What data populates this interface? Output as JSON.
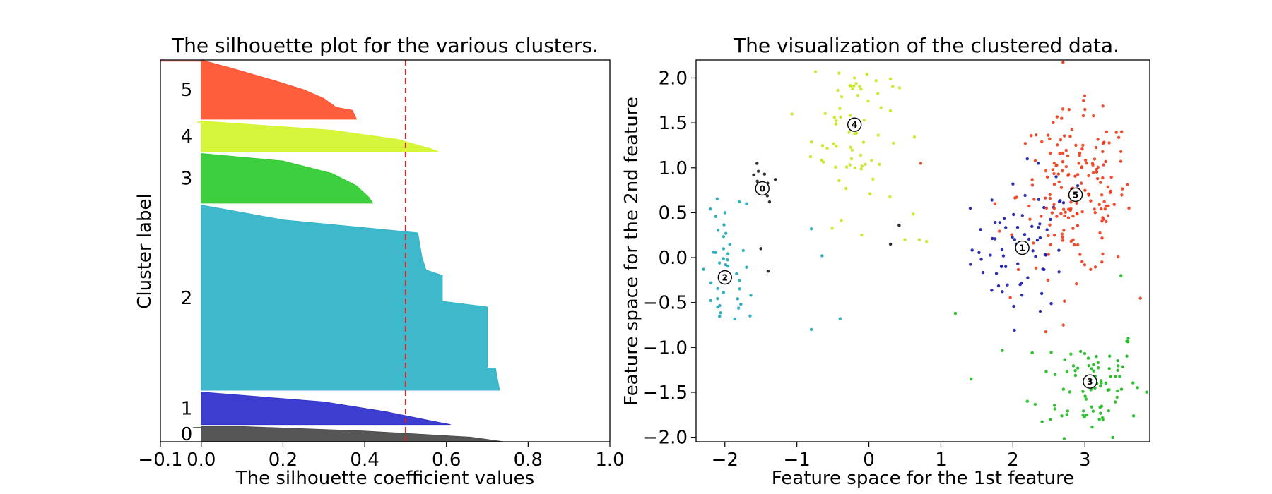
{
  "chart_data": [
    {
      "type": "silhouette",
      "title": "The silhouette plot for the various clusters.",
      "xlabel": "The silhouette coefficient values",
      "ylabel": "Cluster label",
      "xlim": [
        -0.1,
        1.0
      ],
      "xticks": [
        -0.1,
        0.0,
        0.2,
        0.4,
        0.6,
        0.8,
        1.0
      ],
      "xtick_labels": [
        "−0.1",
        "0.0",
        "0.2",
        "0.4",
        "0.6",
        "0.8",
        "1.0"
      ],
      "average_silhouette": 0.5,
      "average_line_color": "#d62728",
      "clusters": [
        {
          "label": "0",
          "color": "#4d4d4d",
          "band": [
            0.0,
            0.04
          ],
          "max": 0.74,
          "min": -0.02,
          "profile": [
            [
              0.0,
              0.74
            ],
            [
              0.3,
              0.66
            ],
            [
              0.7,
              0.4
            ],
            [
              1.0,
              0.1
            ]
          ]
        },
        {
          "label": "1",
          "color": "#3333cc",
          "band": [
            0.045,
            0.13
          ],
          "max": 0.61,
          "min": 0.0,
          "profile": [
            [
              0.0,
              0.61
            ],
            [
              0.12,
              0.56
            ],
            [
              0.4,
              0.45
            ],
            [
              0.7,
              0.3
            ],
            [
              1.0,
              0.0
            ]
          ]
        },
        {
          "label": "2",
          "color": "#33b5c8",
          "band": [
            0.135,
            0.62
          ],
          "max": 0.73,
          "min": 0.0,
          "profile": [
            [
              0.0,
              0.73
            ],
            [
              0.12,
              0.72
            ],
            [
              0.12,
              0.7
            ],
            [
              0.45,
              0.7
            ],
            [
              0.48,
              0.59
            ],
            [
              0.62,
              0.59
            ],
            [
              0.65,
              0.55
            ],
            [
              0.72,
              0.54
            ],
            [
              0.85,
              0.53
            ],
            [
              0.92,
              0.2
            ],
            [
              1.0,
              0.0
            ]
          ]
        },
        {
          "label": "3",
          "color": "#33cc33",
          "band": [
            0.625,
            0.755
          ],
          "max": 0.42,
          "min": 0.0,
          "profile": [
            [
              0.0,
              0.42
            ],
            [
              0.12,
              0.41
            ],
            [
              0.35,
              0.38
            ],
            [
              0.6,
              0.32
            ],
            [
              0.85,
              0.2
            ],
            [
              1.0,
              0.0
            ]
          ]
        },
        {
          "label": "4",
          "color": "#d4f532",
          "band": [
            0.76,
            0.84
          ],
          "max": 0.58,
          "min": -0.01,
          "profile": [
            [
              0.0,
              0.58
            ],
            [
              0.1,
              0.56
            ],
            [
              0.4,
              0.48
            ],
            [
              0.7,
              0.32
            ],
            [
              1.0,
              0.0
            ]
          ]
        },
        {
          "label": "5",
          "color": "#ff5533",
          "band": [
            0.845,
            1.0
          ],
          "max": 0.38,
          "min": -0.1,
          "profile": [
            [
              0.0,
              0.38
            ],
            [
              0.15,
              0.37
            ],
            [
              0.2,
              0.33
            ],
            [
              0.35,
              0.3
            ],
            [
              0.5,
              0.25
            ],
            [
              0.65,
              0.18
            ],
            [
              0.85,
              0.08
            ],
            [
              1.0,
              0.0
            ]
          ]
        }
      ]
    },
    {
      "type": "scatter",
      "title": "The visualization of the clustered data.",
      "xlabel": "Feature space for the 1st feature",
      "ylabel": "Feature space for the 2nd feature",
      "xlim": [
        -2.4,
        3.9
      ],
      "ylim": [
        -2.05,
        2.2
      ],
      "xticks": [
        -2,
        -1,
        0,
        1,
        2,
        3
      ],
      "xtick_labels": [
        "−2",
        "−1",
        "0",
        "1",
        "2",
        "3"
      ],
      "yticks": [
        -2.0,
        -1.5,
        -1.0,
        -0.5,
        0.0,
        0.5,
        1.0,
        1.5,
        2.0
      ],
      "ytick_labels": [
        "−2.0",
        "−1.5",
        "−1.0",
        "−0.5",
        "0.0",
        "0.5",
        "1.0",
        "1.5",
        "2.0"
      ],
      "clusters": [
        {
          "label": "0",
          "color": "#1a1a1a",
          "center": [
            -1.48,
            0.77
          ],
          "n": 14,
          "spread": [
            0.18,
            0.2
          ],
          "points": [
            [
              -1.3,
              0.87
            ],
            [
              -1.45,
              0.93
            ],
            [
              -1.55,
              0.85
            ],
            [
              -1.38,
              0.62
            ],
            [
              -1.5,
              0.1
            ],
            [
              -1.4,
              -0.15
            ],
            [
              0.3,
              0.15
            ],
            [
              0.42,
              0.36
            ],
            [
              -1.6,
              0.92
            ]
          ]
        },
        {
          "label": "1",
          "color": "#1a1aaa",
          "center": [
            2.13,
            0.11
          ],
          "n": 70,
          "spread": [
            0.35,
            0.35
          ],
          "points": [
            [
              2.2,
              1.1
            ],
            [
              2.35,
              1.05
            ],
            [
              2.6,
              0.9
            ],
            [
              2.9,
              0.8
            ],
            [
              1.9,
              -0.1
            ],
            [
              2.4,
              -0.4
            ],
            [
              2.1,
              -0.3
            ]
          ]
        },
        {
          "label": "2",
          "color": "#1aa6b8",
          "center": [
            -2.0,
            -0.22
          ],
          "n": 45,
          "spread": [
            0.17,
            0.35
          ],
          "points": [
            [
              -1.8,
              0.62
            ],
            [
              -2.0,
              0.5
            ],
            [
              -1.7,
              0.6
            ],
            [
              -2.1,
              -0.55
            ],
            [
              -1.65,
              -0.65
            ],
            [
              -0.8,
              -0.8
            ],
            [
              -0.4,
              -0.68
            ],
            [
              -0.65,
              0.02
            ],
            [
              -0.8,
              0.32
            ]
          ]
        },
        {
          "label": "3",
          "color": "#1ab81a",
          "center": [
            3.07,
            -1.38
          ],
          "n": 90,
          "spread": [
            0.35,
            0.3
          ],
          "points": [
            [
              3.6,
              -0.9
            ],
            [
              3.5,
              -0.2
            ],
            [
              1.2,
              -0.62
            ],
            [
              1.42,
              -1.35
            ],
            [
              2.2,
              -1.6
            ],
            [
              3.2,
              -1.8
            ]
          ]
        },
        {
          "label": "4",
          "color": "#c8e61a",
          "center": [
            -0.2,
            1.48
          ],
          "n": 80,
          "spread": [
            0.3,
            0.5
          ],
          "points": [
            [
              -0.2,
              2.0
            ],
            [
              0.1,
              1.97
            ],
            [
              0.7,
              0.2
            ],
            [
              0.5,
              0.2
            ],
            [
              0.8,
              0.18
            ],
            [
              -0.1,
              0.25
            ]
          ]
        },
        {
          "label": "5",
          "color": "#ee3a1a",
          "center": [
            2.87,
            0.7
          ],
          "n": 190,
          "spread": [
            0.4,
            0.45
          ],
          "points": [
            [
              3.0,
              1.65
            ],
            [
              3.5,
              1.18
            ],
            [
              3.3,
              1.4
            ],
            [
              0.72,
              1.05
            ],
            [
              2.7,
              -0.75
            ],
            [
              1.75,
              0.6
            ]
          ]
        }
      ]
    }
  ]
}
